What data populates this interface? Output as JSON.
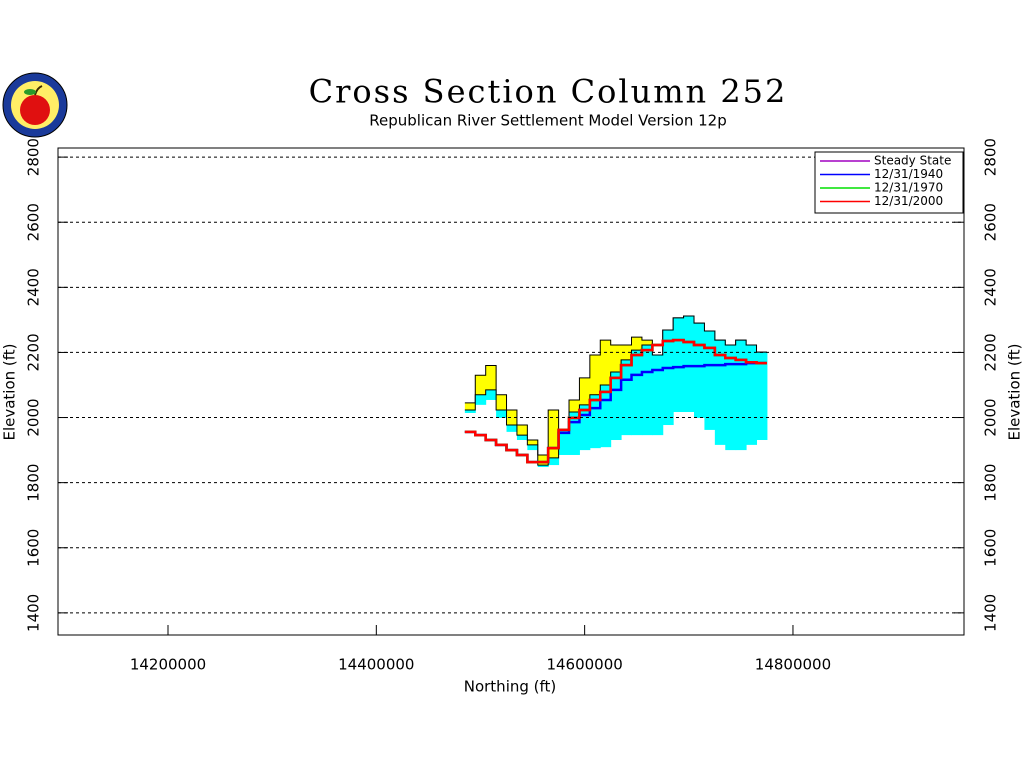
{
  "chart_data": {
    "type": "cross-section",
    "title": "Cross Section Column 252",
    "subtitle": "Republican River Settlement Model Version 12p",
    "xlabel": "Northing (ft)",
    "ylabel": "Elevation (ft)",
    "xlim": [
      14094400,
      14964200
    ],
    "ylim": [
      1332,
      2828
    ],
    "xticks": [
      14200000,
      14400000,
      14600000,
      14800000
    ],
    "yticks": [
      1400,
      1600,
      1800,
      2000,
      2200,
      2400,
      2600,
      2800
    ],
    "grid": true,
    "legend": "upper right",
    "x": [
      14490000,
      14500000,
      14510000,
      14520000,
      14530000,
      14540000,
      14550000,
      14560000,
      14570000,
      14580000,
      14590000,
      14600000,
      14610000,
      14620000,
      14630000,
      14640000,
      14650000,
      14660000,
      14670000,
      14680000,
      14690000,
      14700000,
      14710000,
      14720000,
      14730000,
      14740000,
      14750000,
      14760000,
      14770000
    ],
    "areas": [
      {
        "color": "#ffff00",
        "top": [
          2045,
          2130,
          2160,
          2070,
          2023,
          1977,
          1931,
          1885,
          2023,
          1931,
          2054,
          2122,
          2192,
          2238,
          2223,
          2223,
          2247,
          2238,
          2192,
          2269,
          2306,
          2312,
          2290,
          2266,
          2238,
          2223,
          2238,
          2223,
          2201
        ],
        "bottom": [
          2023,
          2070,
          2085,
          2023,
          1977,
          1946,
          1916,
          1854,
          1876,
          1962,
          2017,
          2039,
          2070,
          2100,
          2140,
          2177,
          2207,
          2223,
          2192,
          2269,
          2306,
          2312,
          2290,
          2266,
          2238,
          2223,
          2238,
          2223,
          2201
        ]
      },
      {
        "color": "#00ffff",
        "top": [
          2023,
          2070,
          2085,
          2023,
          1977,
          1946,
          1916,
          1854,
          1876,
          1962,
          2017,
          2039,
          2070,
          2100,
          2140,
          2177,
          2207,
          2223,
          2192,
          2269,
          2306,
          2312,
          2290,
          2266,
          2238,
          2223,
          2238,
          2223,
          2201
        ],
        "bottom": [
          2014,
          2039,
          2054,
          1999,
          1956,
          1931,
          1900,
          1848,
          1854,
          1885,
          1885,
          1900,
          1906,
          1909,
          1931,
          1946,
          1946,
          1946,
          1946,
          1977,
          2017,
          2017,
          1999,
          1962,
          1916,
          1900,
          1900,
          1916,
          1931
        ]
      }
    ],
    "series": [
      {
        "name": "Steady State",
        "color": "#a000c0",
        "values": [
          1956,
          1946,
          1931,
          1916,
          1900,
          1885,
          1863,
          1863,
          1906,
          1962,
          1999,
          2023,
          2054,
          2079,
          2122,
          2161,
          2192,
          2207,
          2223,
          2235,
          2238,
          2232,
          2223,
          2214,
          2192,
          2183,
          2177,
          2170,
          2167
        ]
      },
      {
        "name": "12/31/1940",
        "color": "#0000ff",
        "values": [
          1956,
          1946,
          1931,
          1916,
          1900,
          1885,
          1863,
          1863,
          1906,
          1953,
          1986,
          2008,
          2029,
          2054,
          2085,
          2116,
          2131,
          2140,
          2146,
          2152,
          2155,
          2158,
          2158,
          2161,
          2161,
          2164,
          2164,
          2167,
          2167
        ]
      },
      {
        "name": "12/31/1970",
        "color": "#00e000",
        "values": [
          1956,
          1946,
          1931,
          1916,
          1900,
          1885,
          1863,
          1863,
          1906,
          1962,
          1999,
          2023,
          2054,
          2079,
          2122,
          2161,
          2192,
          2207,
          2223,
          2235,
          2238,
          2232,
          2223,
          2214,
          2192,
          2183,
          2177,
          2170,
          2167
        ]
      },
      {
        "name": "12/31/2000",
        "color": "#ff0000",
        "values": [
          1956,
          1946,
          1931,
          1916,
          1900,
          1885,
          1863,
          1863,
          1906,
          1962,
          1999,
          2023,
          2054,
          2079,
          2122,
          2161,
          2192,
          2207,
          2223,
          2235,
          2238,
          2232,
          2223,
          2214,
          2192,
          2183,
          2177,
          2170,
          2167
        ]
      }
    ]
  }
}
